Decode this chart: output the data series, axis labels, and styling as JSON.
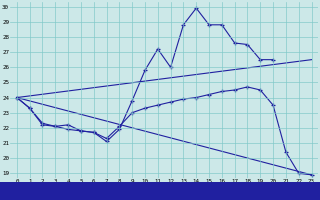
{
  "background_color": "#cce8e8",
  "plot_bg": "#cce8e8",
  "line_color": "#2020a0",
  "label_bg": "#2020a0",
  "label_fg": "#ffffff",
  "ylim": [
    19,
    30
  ],
  "xlim": [
    0,
    23
  ],
  "yticks": [
    19,
    20,
    21,
    22,
    23,
    24,
    25,
    26,
    27,
    28,
    29,
    30
  ],
  "xticks": [
    0,
    1,
    2,
    3,
    4,
    5,
    6,
    7,
    8,
    9,
    10,
    11,
    12,
    13,
    14,
    15,
    16,
    17,
    18,
    19,
    20,
    21,
    22,
    23
  ],
  "series": [
    {
      "x": [
        0,
        1,
        2,
        3,
        4,
        5,
        6,
        7,
        8,
        9,
        10,
        11,
        12,
        13,
        14,
        15,
        16,
        17,
        18,
        19,
        20
      ],
      "y": [
        24,
        23.3,
        22.3,
        22.1,
        21.9,
        21.8,
        21.7,
        21.1,
        21.9,
        23.8,
        25.8,
        27.2,
        26.0,
        28.8,
        29.9,
        28.8,
        28.8,
        27.6,
        27.5,
        26.5,
        26.5
      ],
      "marker": true
    },
    {
      "x": [
        0,
        1,
        2,
        3,
        4,
        5,
        6,
        7,
        8,
        9,
        10,
        11,
        12,
        13,
        14,
        15,
        16,
        17,
        18,
        19,
        20,
        21,
        22,
        23
      ],
      "y": [
        24,
        23.3,
        22.2,
        22.1,
        22.2,
        21.8,
        21.7,
        21.3,
        22.1,
        23.0,
        23.3,
        23.5,
        23.7,
        23.9,
        24.0,
        24.2,
        24.4,
        24.5,
        24.7,
        24.5,
        23.5,
        20.4,
        19.0,
        18.9
      ],
      "marker": true
    },
    {
      "x": [
        0,
        23
      ],
      "y": [
        24,
        26.5
      ],
      "marker": false
    },
    {
      "x": [
        0,
        23
      ],
      "y": [
        24,
        18.9
      ],
      "marker": false
    }
  ]
}
